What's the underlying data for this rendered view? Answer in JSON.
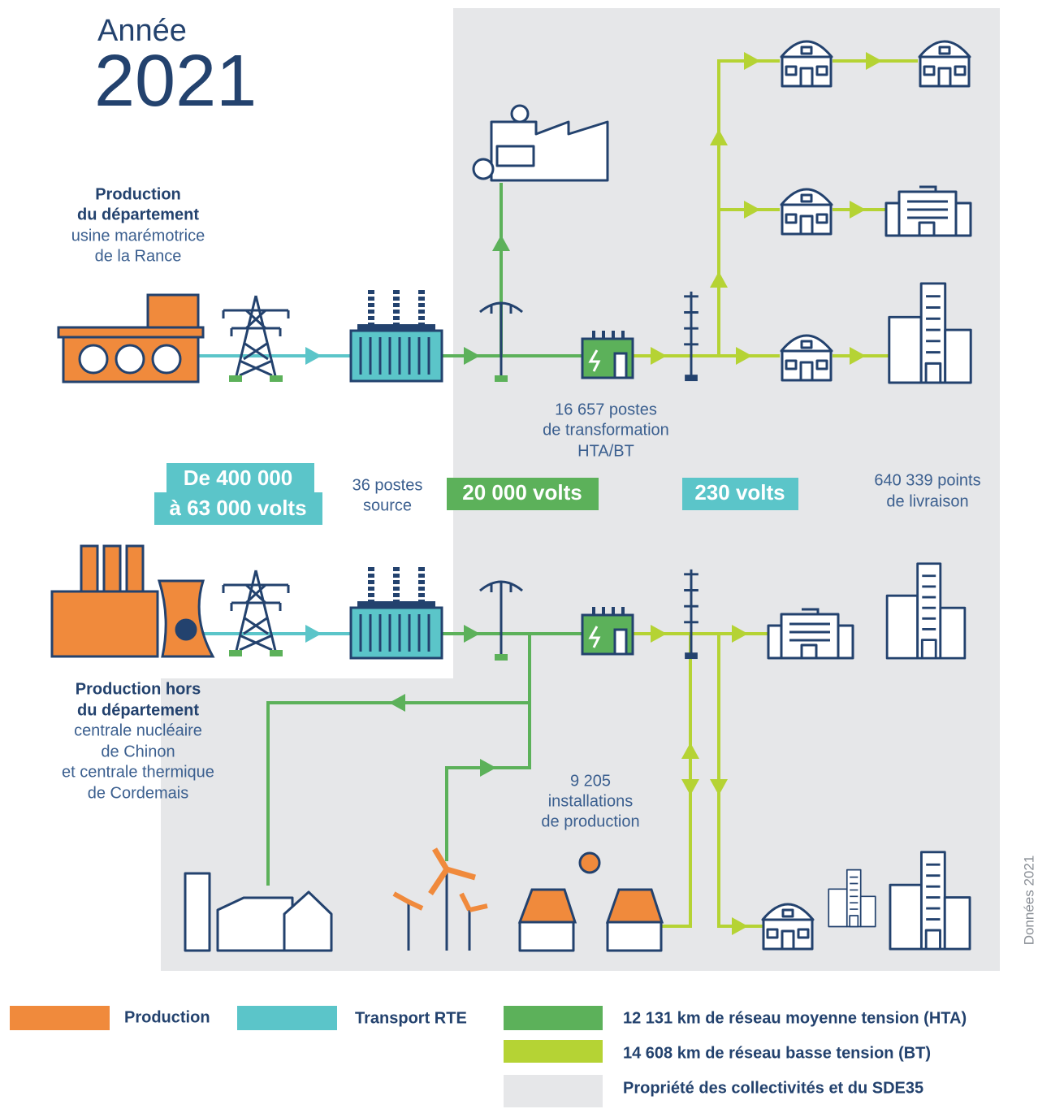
{
  "header": {
    "label": "Année",
    "year": "2021"
  },
  "production_dept": {
    "heading": [
      "Production",
      "du département"
    ],
    "lines": [
      "usine marémotrice",
      "de la Rance"
    ]
  },
  "production_outside": {
    "heading": [
      "Production hors",
      "du département"
    ],
    "lines": [
      "centrale nucléaire",
      "de Chinon",
      "et centrale thermique",
      "de Cordemais"
    ]
  },
  "voltages": [
    {
      "lines": [
        "De 400 000",
        "à 63 000 volts"
      ]
    },
    {
      "lines": [
        "20 000 volts"
      ]
    },
    {
      "lines": [
        "230 volts"
      ]
    }
  ],
  "stats": [
    {
      "lines": [
        "36 postes",
        "source"
      ]
    },
    {
      "lines": [
        "16 657 postes",
        "de transformation",
        "HTA/BT"
      ]
    },
    {
      "lines": [
        "640 339 points",
        "de livraison"
      ]
    },
    {
      "lines": [
        "9 205",
        "installations",
        "de production"
      ]
    }
  ],
  "side_note": "Données 2021",
  "legend": [
    "Production",
    "Transport RTE",
    "12 131 km de réseau moyenne tension (HTA)",
    "14 608 km de réseau basse tension (BT)",
    "Propriété des collectivités et du SDE35"
  ]
}
